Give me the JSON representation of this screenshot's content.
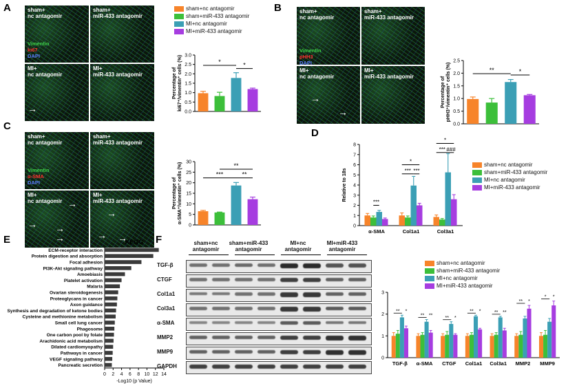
{
  "colors": {
    "sham_nc": "#f7842a",
    "sham_miR": "#3cbf3a",
    "MI_nc": "#3b9fb5",
    "MI_miR": "#a63de0"
  },
  "legend": [
    "sham+nc antagomir",
    "sham+miR-433 antagomir",
    "MI+nc antagomir",
    "MI+miR-433 antagomir"
  ],
  "panels": {
    "A": {
      "label": "A",
      "caps": [
        "sham+\nnc antagomir",
        "sham+\nmiR-433 antagomir",
        "MI+\nnc antagomir",
        "MI+\nmiR-433 antagomir"
      ],
      "stains": [
        "Vimentin",
        "ki67",
        "DAPI"
      ]
    },
    "B": {
      "label": "B",
      "caps": [
        "sham+\nnc antagomir",
        "sham+\nmiR-433 antagomir",
        "MI+\nnc antagomir",
        "MI+\nmiR-433 antagomir"
      ],
      "stains": [
        "Vimentin",
        "pHH3",
        "DAPI"
      ]
    },
    "C": {
      "label": "C",
      "caps": [
        "sham+\nnc antagomir",
        "sham+\nmiR-433 antagomir",
        "MI+\nnc antagomir",
        "MI+\nmiR-433 antagomir"
      ],
      "stains": [
        "Vimentin",
        "α-SMA",
        "DAPI"
      ]
    },
    "D": {
      "label": "D"
    },
    "E": {
      "label": "E"
    },
    "F": {
      "label": "F",
      "groups": [
        "sham+nc\nantagomir",
        "sham+miR-433\nantagomir",
        "MI+nc\nantagomir",
        "MI+miR-433\nantagomir"
      ],
      "blots": [
        "TGF-β",
        "CTGF",
        "Col1a1",
        "Col3a1",
        "α-SMA",
        "MMP2",
        "MMP9",
        "GAPDH"
      ]
    }
  },
  "chart_data": [
    {
      "id": "A",
      "type": "bar",
      "categories": [
        "sham+nc antagomir",
        "sham+miR-433 antagomir",
        "MI+nc antagomir",
        "MI+miR-433 antagomir"
      ],
      "values": [
        0.97,
        0.82,
        1.78,
        1.19
      ],
      "errors": [
        0.1,
        0.2,
        0.28,
        0.05
      ],
      "ylabel": "Percentage of\nki67⁺/vimentin⁺ cells (%)",
      "ylim": [
        0,
        3.0
      ],
      "ticks": [
        "0.0",
        "0.5",
        "1.0",
        "1.5",
        "2.0",
        "2.5",
        "3.0"
      ],
      "sig": [
        {
          "from": 0,
          "to": 2,
          "label": "*",
          "level": 2.45
        },
        {
          "from": 2,
          "to": 3,
          "label": "*",
          "level": 2.28
        }
      ]
    },
    {
      "id": "B",
      "type": "bar",
      "categories": [
        "sham+nc antagomir",
        "sham+miR-433 antagomir",
        "MI+nc antagomir",
        "MI+miR-433 antagomir"
      ],
      "values": [
        0.98,
        0.84,
        1.65,
        1.13
      ],
      "errors": [
        0.08,
        0.16,
        0.1,
        0.03
      ],
      "ylabel": "Percentage of\npHH3⁺/vimentin⁺ cells (%)",
      "ylim": [
        0,
        2.5
      ],
      "ticks": [
        "0.0",
        "0.5",
        "1.0",
        "1.5",
        "2.0",
        "2.5"
      ],
      "sig": [
        {
          "from": 0,
          "to": 2,
          "label": "**",
          "level": 1.98
        },
        {
          "from": 2,
          "to": 3,
          "label": "*",
          "level": 1.93
        }
      ]
    },
    {
      "id": "C",
      "type": "bar",
      "categories": [
        "sham+nc antagomir",
        "sham+miR-433 antagomir",
        "MI+nc antagomir",
        "MI+miR-433 antagomir"
      ],
      "values": [
        6.5,
        5.9,
        18.7,
        12.2
      ],
      "errors": [
        0.4,
        0.2,
        1.4,
        1.0
      ],
      "ylabel": "Percentage of\nα-SMA⁺/vimentin⁺ cells (%)",
      "ylim": [
        0,
        30
      ],
      "ticks": [
        "0",
        "5",
        "10",
        "15",
        "20",
        "25",
        "30"
      ],
      "sig": [
        {
          "from": 0,
          "to": 2,
          "label": "***",
          "level": 22.3
        },
        {
          "from": 2,
          "to": 3,
          "label": "**",
          "level": 22.3
        },
        {
          "from": 1,
          "to": 3,
          "label": "**",
          "level": 26.4
        }
      ]
    },
    {
      "id": "D",
      "type": "bar",
      "categories": [
        "α-SMA",
        "Col1a1",
        "Col3a1"
      ],
      "series": [
        {
          "name": "sham+nc antagomir",
          "values": [
            1.0,
            1.0,
            0.85
          ],
          "errors": [
            0.2,
            0.25,
            0.2
          ]
        },
        {
          "name": "sham+miR-433 antagomir",
          "values": [
            0.8,
            0.8,
            0.6
          ],
          "errors": [
            0.15,
            0.15,
            0.1
          ]
        },
        {
          "name": "MI+nc antagomir",
          "values": [
            1.35,
            3.95,
            5.25
          ],
          "errors": [
            0.15,
            0.9,
            1.85
          ]
        },
        {
          "name": "MI+miR-433 antagomir",
          "values": [
            0.65,
            2.0,
            2.6
          ],
          "errors": [
            0.1,
            0.2,
            0.45
          ]
        }
      ],
      "ylabel": "Relative to 18s",
      "ylim": [
        0,
        8
      ],
      "ticks": [
        "0",
        "1",
        "2",
        "3",
        "4",
        "5",
        "6",
        "7",
        "8"
      ],
      "sig": [
        {
          "cat": 0,
          "from": 1,
          "to": 2,
          "label": "***",
          "level": 2.0
        },
        {
          "cat": 1,
          "from": 0,
          "to": 2,
          "label": "***",
          "level": 5.1
        },
        {
          "cat": 1,
          "from": 2,
          "to": 3,
          "label": "***",
          "level": 5.1
        },
        {
          "cat": 1,
          "from": 0,
          "to": 3,
          "label": "*",
          "level": 6.0
        },
        {
          "cat": 2,
          "from": 0,
          "to": 2,
          "label": "***",
          "level": 7.2
        },
        {
          "cat": 2,
          "from": 2,
          "to": 3,
          "label": "###",
          "level": 7.2
        },
        {
          "cat": 2,
          "from": 0,
          "to": 3,
          "label": "*",
          "level": 8.1
        }
      ]
    },
    {
      "id": "E",
      "type": "bar",
      "orientation": "horizontal",
      "title": "KEGG",
      "xlabel": "-Log10 (p Value)",
      "categories": [
        "ECM-receptor interaction",
        "Protein digestion and absorption",
        "Focal adhesion",
        "PI3K-Akt signaling pathway",
        "Amoebiasis",
        "Platelet activation",
        "Malaria",
        "Ovarian steroidogenesis",
        "Proteoglycans in cancer",
        "Axon guidance",
        "Synthesis and degradation of ketone bodies",
        "Cysteine and methionine metabolism",
        "Small cell lung cancer",
        "Phagosome",
        "One carbon pool by folate",
        "Arachidonic acid metabolism",
        "Dilated cardiomyopathy",
        "Pathways in cancer",
        "VEGF signaling pathway",
        "Pancreatic secretion"
      ],
      "values": [
        12.8,
        11.5,
        8.7,
        6.3,
        4.8,
        4.0,
        3.6,
        3.2,
        3.0,
        2.9,
        2.7,
        2.6,
        2.4,
        2.3,
        2.2,
        2.1,
        2.0,
        1.9,
        1.8,
        1.7
      ],
      "xlim": [
        0,
        14
      ],
      "ticks": [
        "0",
        "2",
        "4",
        "6",
        "8",
        "10",
        "12",
        "14"
      ]
    },
    {
      "id": "F",
      "type": "bar",
      "categories": [
        "TGF-β",
        "α-SMA",
        "CTGF",
        "Col1a1",
        "Col3a1",
        "MMP2",
        "MMP9"
      ],
      "series": [
        {
          "name": "sham+nc antagomir",
          "values": [
            1.0,
            1.0,
            1.0,
            1.0,
            1.0,
            1.0,
            1.0
          ],
          "errors": [
            0.15,
            0.1,
            0.1,
            0.1,
            0.1,
            0.1,
            0.15
          ]
        },
        {
          "name": "sham+miR-433 antagomir",
          "values": [
            1.1,
            1.05,
            1.05,
            1.05,
            1.05,
            1.05,
            1.05
          ],
          "errors": [
            0.15,
            0.1,
            0.15,
            0.1,
            0.1,
            0.15,
            0.2
          ]
        },
        {
          "name": "MI+nc antagomir",
          "values": [
            1.85,
            1.65,
            1.55,
            1.9,
            1.85,
            1.8,
            1.65
          ],
          "errors": [
            0.1,
            0.1,
            0.1,
            0.05,
            0.05,
            0.1,
            0.15
          ]
        },
        {
          "name": "MI+miR-433 antagomir",
          "values": [
            1.35,
            1.15,
            1.05,
            1.3,
            1.25,
            2.25,
            2.4
          ],
          "errors": [
            0.1,
            0.1,
            0.05,
            0.05,
            0.1,
            0.15,
            0.2
          ]
        }
      ],
      "ylim": [
        0,
        3
      ],
      "ticks": [
        "0",
        "1",
        "2",
        "3"
      ],
      "sig_labels": [
        "**",
        "*",
        "**",
        "**",
        "**",
        "*",
        "**",
        "*",
        "**",
        "**",
        "**",
        "*",
        "*",
        "*"
      ]
    }
  ]
}
